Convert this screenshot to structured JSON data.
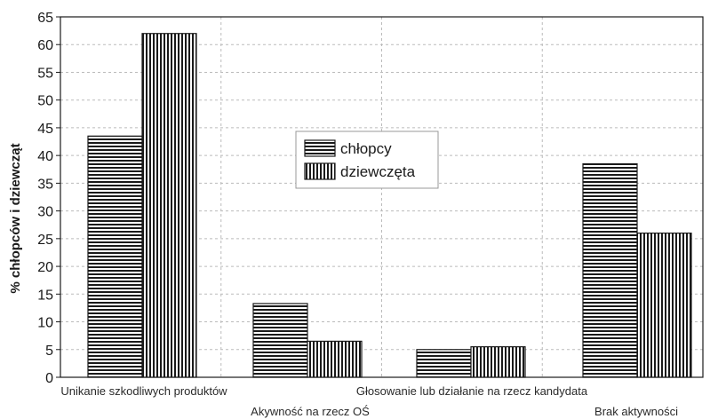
{
  "chart_data": {
    "type": "bar",
    "title": "",
    "xlabel": "",
    "ylabel": "% chłopców i dziewcząt",
    "categories": [
      "Unikanie szkodliwych produktów",
      "Akywność na rzecz OŚ",
      "Głosowanie lub działanie na rzecz kandydata",
      "Brak aktywności"
    ],
    "series": [
      {
        "name": "chłopcy",
        "pattern": "horizontal",
        "values": [
          43.5,
          13.3,
          5.0,
          38.5
        ]
      },
      {
        "name": "dziewczęta",
        "pattern": "vertical",
        "values": [
          62.0,
          6.5,
          5.5,
          26.0
        ]
      }
    ],
    "ylim": [
      0,
      65
    ],
    "yticks": [
      0,
      5,
      10,
      15,
      20,
      25,
      30,
      35,
      40,
      45,
      50,
      55,
      60,
      65
    ],
    "grid": true,
    "legend_position": "center",
    "colors": {
      "bar_stroke": "#1a1a1a",
      "bar_fill": "#ffffff",
      "grid": "#bbbbbb",
      "axis": "#1a1a1a"
    }
  }
}
